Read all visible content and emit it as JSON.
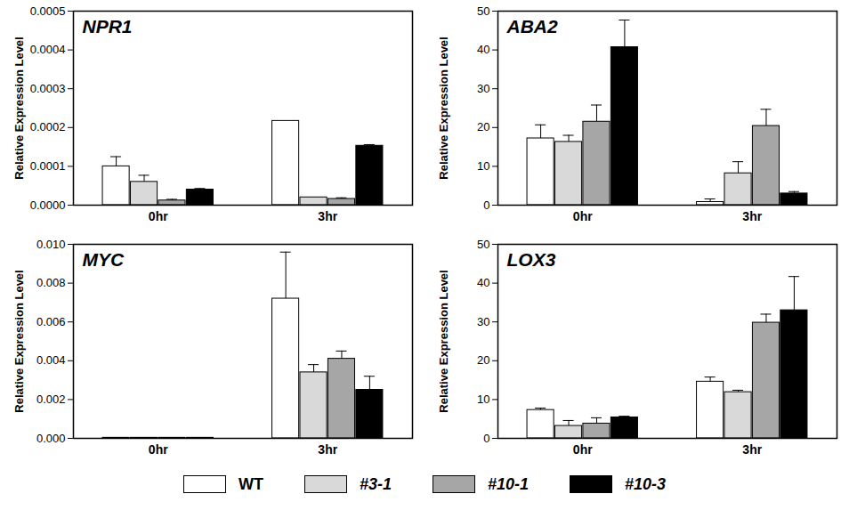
{
  "chart_data": [
    {
      "type": "bar",
      "title": "NPR1",
      "y_label": "Relative Expression Level",
      "categories": [
        "0hr",
        "3hr"
      ],
      "ylim": [
        0,
        0.0005
      ],
      "yticks": [
        {
          "value": 0,
          "label": "0.0000"
        },
        {
          "value": 0.0001,
          "label": "0.0001"
        },
        {
          "value": 0.0002,
          "label": "0.0002"
        },
        {
          "value": 0.0003,
          "label": "0.0003"
        },
        {
          "value": 0.0004,
          "label": "0.0004"
        },
        {
          "value": 0.0005,
          "label": "0.0005"
        }
      ],
      "series": [
        {
          "name": "WT",
          "color": "#ffffff",
          "values": [
            0.0001,
            0.000217
          ],
          "errors": [
            2.5e-05,
            null
          ]
        },
        {
          "name": "#3-1",
          "color": "#d9d9d9",
          "values": [
            6e-05,
            2e-05
          ],
          "errors": [
            1.7e-05,
            null
          ]
        },
        {
          "name": "#10-1",
          "color": "#a6a6a6",
          "values": [
            1.2e-05,
            1.6e-05
          ],
          "errors": [
            3e-06,
            3e-06
          ]
        },
        {
          "name": "#10-3",
          "color": "#000000",
          "values": [
            4e-05,
            0.000153
          ],
          "errors": [
            3e-06,
            3e-06
          ]
        }
      ]
    },
    {
      "type": "bar",
      "title": "ABA2",
      "y_label": "Relative Expression Level",
      "categories": [
        "0hr",
        "3hr"
      ],
      "ylim": [
        0,
        50
      ],
      "yticks": [
        0,
        10,
        20,
        30,
        40,
        50
      ],
      "series": [
        {
          "name": "WT",
          "color": "#ffffff",
          "values": [
            17.2,
            0.8
          ],
          "errors": [
            3.5,
            0.8
          ]
        },
        {
          "name": "#3-1",
          "color": "#d9d9d9",
          "values": [
            16.3,
            8.2
          ],
          "errors": [
            1.7,
            3.0
          ]
        },
        {
          "name": "#10-1",
          "color": "#a6a6a6",
          "values": [
            21.5,
            20.4
          ],
          "errors": [
            4.3,
            4.3
          ]
        },
        {
          "name": "#10-3",
          "color": "#000000",
          "values": [
            40.7,
            3.0
          ],
          "errors": [
            7.0,
            0.5
          ]
        }
      ]
    },
    {
      "type": "bar",
      "title": "MYC",
      "y_label": "Relative Expression Level",
      "categories": [
        "0hr",
        "3hr"
      ],
      "ylim": [
        0,
        0.01
      ],
      "yticks": [
        {
          "value": 0,
          "label": "0.000"
        },
        {
          "value": 0.002,
          "label": "0.002"
        },
        {
          "value": 0.004,
          "label": "0.004"
        },
        {
          "value": 0.006,
          "label": "0.006"
        },
        {
          "value": 0.008,
          "label": "0.008"
        },
        {
          "value": 0.01,
          "label": "0.010"
        }
      ],
      "series": [
        {
          "name": "WT",
          "color": "#ffffff",
          "values": [
            3e-05,
            0.0072
          ],
          "errors": [
            null,
            0.0024
          ]
        },
        {
          "name": "#3-1",
          "color": "#d9d9d9",
          "values": [
            3e-05,
            0.0034
          ],
          "errors": [
            null,
            0.0004
          ]
        },
        {
          "name": "#10-1",
          "color": "#a6a6a6",
          "values": [
            3e-05,
            0.0041
          ],
          "errors": [
            null,
            0.0004
          ]
        },
        {
          "name": "#10-3",
          "color": "#000000",
          "values": [
            3e-05,
            0.0025
          ],
          "errors": [
            null,
            0.0007
          ]
        }
      ]
    },
    {
      "type": "bar",
      "title": "LOX3",
      "y_label": "Relative Expression Level",
      "categories": [
        "0hr",
        "3hr"
      ],
      "ylim": [
        0,
        50
      ],
      "yticks": [
        0,
        10,
        20,
        30,
        40,
        50
      ],
      "series": [
        {
          "name": "WT",
          "color": "#ffffff",
          "values": [
            7.3,
            14.6
          ],
          "errors": [
            0.5,
            1.2
          ]
        },
        {
          "name": "#3-1",
          "color": "#d9d9d9",
          "values": [
            3.2,
            11.9
          ],
          "errors": [
            1.4,
            0.5
          ]
        },
        {
          "name": "#10-1",
          "color": "#a6a6a6",
          "values": [
            3.8,
            29.8
          ],
          "errors": [
            1.5,
            2.2
          ]
        },
        {
          "name": "#10-3",
          "color": "#000000",
          "values": [
            5.4,
            33.0
          ],
          "errors": [
            0.3,
            8.7
          ]
        }
      ]
    }
  ]
}
